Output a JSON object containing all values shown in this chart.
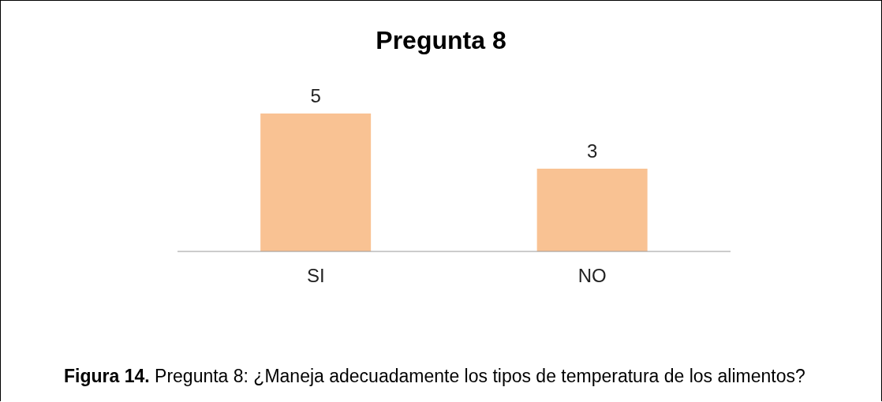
{
  "chart_data": {
    "type": "bar",
    "title": "Pregunta 8",
    "categories": [
      "SI",
      "NO"
    ],
    "values": [
      5,
      3
    ],
    "color": "#f9c293",
    "data_labels": true,
    "grid": false,
    "tick_labels": "x",
    "annotations": [
      "Figura 14. Pregunta 8: ¿Maneja adecuadamente los tipos de temperatura de los alimentos?"
    ]
  }
}
